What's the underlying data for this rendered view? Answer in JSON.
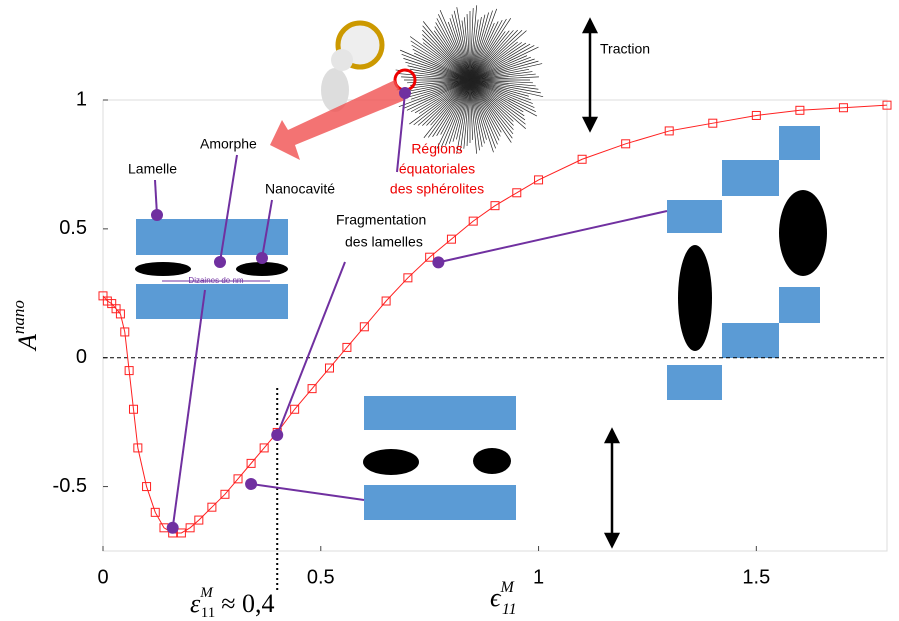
{
  "chart_data": {
    "type": "line",
    "x": [
      0,
      0.01,
      0.02,
      0.03,
      0.04,
      0.05,
      0.06,
      0.07,
      0.08,
      0.1,
      0.12,
      0.14,
      0.16,
      0.18,
      0.2,
      0.22,
      0.25,
      0.28,
      0.31,
      0.34,
      0.37,
      0.4,
      0.44,
      0.48,
      0.52,
      0.56,
      0.6,
      0.65,
      0.7,
      0.75,
      0.8,
      0.85,
      0.9,
      0.95,
      1.0,
      1.1,
      1.2,
      1.3,
      1.4,
      1.5,
      1.6,
      1.7,
      1.8
    ],
    "series": [
      {
        "color": "#ff2020",
        "values": [
          0.24,
          0.22,
          0.21,
          0.19,
          0.17,
          0.1,
          -0.05,
          -0.2,
          -0.35,
          -0.5,
          -0.6,
          -0.66,
          -0.68,
          -0.68,
          -0.66,
          -0.63,
          -0.58,
          -0.53,
          -0.47,
          -0.41,
          -0.35,
          -0.29,
          -0.2,
          -0.12,
          -0.04,
          0.04,
          0.12,
          0.22,
          0.31,
          0.39,
          0.46,
          0.53,
          0.59,
          0.64,
          0.69,
          0.77,
          0.83,
          0.88,
          0.91,
          0.94,
          0.96,
          0.97,
          0.98
        ]
      }
    ],
    "highlights": {
      "color": "#7030a0",
      "x": [
        0.16,
        0.34,
        0.4,
        0.77
      ],
      "y": [
        -0.66,
        -0.49,
        -0.3,
        0.37
      ]
    },
    "xlim": [
      0,
      1.8
    ],
    "ylim": [
      -0.75,
      1
    ],
    "xticks": [
      0,
      0.5,
      1,
      1.5
    ],
    "yticks": [
      -0.5,
      0,
      0.5,
      1
    ],
    "hline": 0,
    "vline": 0.4,
    "x_label": {
      "main": "ϵ",
      "superscript": "M",
      "subscript": "11"
    },
    "y_label": {
      "main": "A",
      "superscript": "nano"
    },
    "marker_annotation": {
      "main": "ε",
      "superscript": "M",
      "subscript": "11",
      "text": "≈ 0,4"
    },
    "annotations": {
      "traction": "Traction",
      "amorphe": "Amorphe",
      "lamelle": "Lamelle",
      "nanocavite": "Nanocavité",
      "scale": "Dizaines de nm",
      "regions": [
        "Régions",
        "équatoriales",
        "des sphérolites"
      ],
      "fragmentation": [
        "Fragmentation",
        "des lamelles"
      ]
    }
  }
}
